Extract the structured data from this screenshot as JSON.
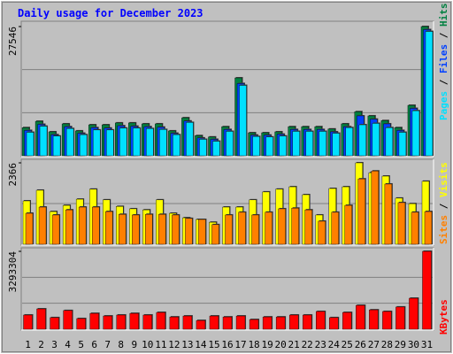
{
  "chart_data": {
    "type": "bar",
    "title": "Daily usage for December 2023",
    "categories": [
      "1",
      "2",
      "3",
      "4",
      "5",
      "6",
      "7",
      "8",
      "9",
      "10",
      "11",
      "12",
      "13",
      "14",
      "15",
      "16",
      "17",
      "18",
      "19",
      "20",
      "21",
      "22",
      "23",
      "24",
      "25",
      "26",
      "27",
      "28",
      "29",
      "30",
      "31"
    ],
    "category_colors": [
      "#000000",
      "#00805c",
      "#00805c",
      "#000000",
      "#000000",
      "#000000",
      "#000000",
      "#000000",
      "#00805c",
      "#00805c",
      "#000000",
      "#000000",
      "#000000",
      "#000000",
      "#000000",
      "#00805c",
      "#00805c",
      "#000000",
      "#000000",
      "#000000",
      "#000000",
      "#000000",
      "#00805c",
      "#00805c",
      "#000000",
      "#000000",
      "#000000",
      "#000000",
      "#000000",
      "#00805c",
      "#00805c"
    ],
    "panels": [
      {
        "ylim": [
          0,
          27546
        ],
        "yticks": [
          27546
        ],
        "series": [
          {
            "name": "Hits",
            "color": "#008040",
            "values": [
              6000,
              7350,
              5100,
              6800,
              5300,
              6600,
              6600,
              7000,
              7000,
              6800,
              6800,
              5300,
              8100,
              4300,
              4000,
              6200,
              16600,
              4900,
              4900,
              5100,
              6200,
              6200,
              6200,
              5700,
              6800,
              9400,
              8500,
              7500,
              6000,
              10750,
              27546
            ]
          },
          {
            "name": "Files",
            "color": "#0040ff",
            "values": [
              5400,
              6700,
              4500,
              6200,
              4800,
              6000,
              5900,
              6400,
              6300,
              6200,
              6100,
              4800,
              7400,
              3800,
              3500,
              5600,
              15400,
              4400,
              4400,
              4600,
              5600,
              5600,
              5600,
              5100,
              6200,
              8500,
              7800,
              6800,
              5400,
              10100,
              26900
            ]
          },
          {
            "name": "Pages",
            "color": "#00e0ff",
            "values": [
              5000,
              6300,
              4200,
              5800,
              4500,
              5500,
              5500,
              5900,
              5900,
              5800,
              5600,
              4500,
              7100,
              3500,
              3100,
              5200,
              15000,
              4100,
              4000,
              4200,
              5200,
              5200,
              5200,
              4800,
              6000,
              6600,
              6900,
              6000,
              5000,
              9600,
              26500
            ]
          }
        ]
      },
      {
        "ylim": [
          0,
          2366
        ],
        "yticks": [
          2366
        ],
        "series": [
          {
            "name": "Visits",
            "color": "#ffff00",
            "values": [
              1260,
              1570,
              950,
              1130,
              1310,
              1600,
              1290,
              1100,
              1030,
              1000,
              1290,
              900,
              770,
              720,
              640,
              1080,
              1080,
              1290,
              1520,
              1600,
              1670,
              1440,
              850,
              1620,
              1670,
              2366,
              2080,
              1980,
              1340,
              1180,
              1830
            ]
          },
          {
            "name": "Sites",
            "color": "#ff8000",
            "values": [
              900,
              1080,
              850,
              1000,
              1080,
              1080,
              950,
              870,
              850,
              870,
              870,
              850,
              750,
              720,
              570,
              850,
              930,
              850,
              930,
              1030,
              1050,
              1000,
              670,
              930,
              1130,
              1900,
              2130,
              1750,
              1210,
              930,
              950
            ]
          }
        ]
      },
      {
        "ylim": [
          0,
          3293304
        ],
        "yticks": [
          3293304
        ],
        "series": [
          {
            "name": "KBytes",
            "color": "#ff0000",
            "values": [
              600000,
              860000,
              490000,
              790000,
              450000,
              670000,
              560000,
              600000,
              670000,
              600000,
              710000,
              520000,
              560000,
              370000,
              560000,
              520000,
              560000,
              410000,
              520000,
              520000,
              600000,
              600000,
              750000,
              490000,
              710000,
              1010000,
              820000,
              750000,
              940000,
              1310000,
              3293304
            ]
          }
        ]
      }
    ]
  }
}
